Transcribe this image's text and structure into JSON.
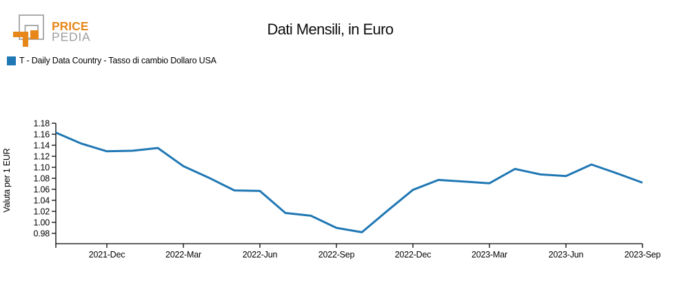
{
  "page": {
    "background": "#ffffff"
  },
  "logo": {
    "name": "PricePedia",
    "word_top": "PRICE",
    "word_bottom": "PEDIA",
    "orange": "#E7871A",
    "gray": "#ABABAB",
    "word_bottom_gray": "#9E9E9E"
  },
  "header": {
    "title": "Dati Mensili, in Euro"
  },
  "legend": {
    "swatch_color": "#1F77B4",
    "label": "T - Daily Data Country - Tasso di cambio Dollaro USA"
  },
  "chart_data": {
    "type": "line",
    "title": "Dati Mensili, in Euro",
    "xlabel": "",
    "ylabel": "Valuta per 1 EUR",
    "ylim": [
      0.98,
      1.18
    ],
    "y_ticks": [
      0.98,
      1.0,
      1.02,
      1.04,
      1.06,
      1.08,
      1.1,
      1.12,
      1.14,
      1.16,
      1.18
    ],
    "grid": false,
    "legend_position": "top-left-above-plot",
    "x": [
      "2021-Oct",
      "2021-Nov",
      "2021-Dec",
      "2022-Jan",
      "2022-Feb",
      "2022-Mar",
      "2022-Apr",
      "2022-May",
      "2022-Jun",
      "2022-Jul",
      "2022-Aug",
      "2022-Sep",
      "2022-Oct",
      "2022-Nov",
      "2022-Dec",
      "2023-Jan",
      "2023-Feb",
      "2023-Mar",
      "2023-Apr",
      "2023-May",
      "2023-Jun",
      "2023-Jul",
      "2023-Aug",
      "2023-Sep"
    ],
    "x_tick_labels": [
      "2021-Dec",
      "2022-Mar",
      "2022-Jun",
      "2022-Sep",
      "2022-Dec",
      "2023-Mar",
      "2023-Jun",
      "2023-Sep"
    ],
    "series": [
      {
        "name": "T - Daily Data Country - Tasso di cambio Dollaro USA",
        "color": "#1F77B4",
        "values": [
          1.163,
          1.143,
          1.129,
          1.13,
          1.135,
          1.102,
          1.081,
          1.058,
          1.057,
          1.017,
          1.012,
          0.99,
          0.982,
          1.021,
          1.059,
          1.077,
          1.074,
          1.071,
          1.097,
          1.087,
          1.084,
          1.105,
          1.089,
          1.072
        ]
      }
    ]
  }
}
